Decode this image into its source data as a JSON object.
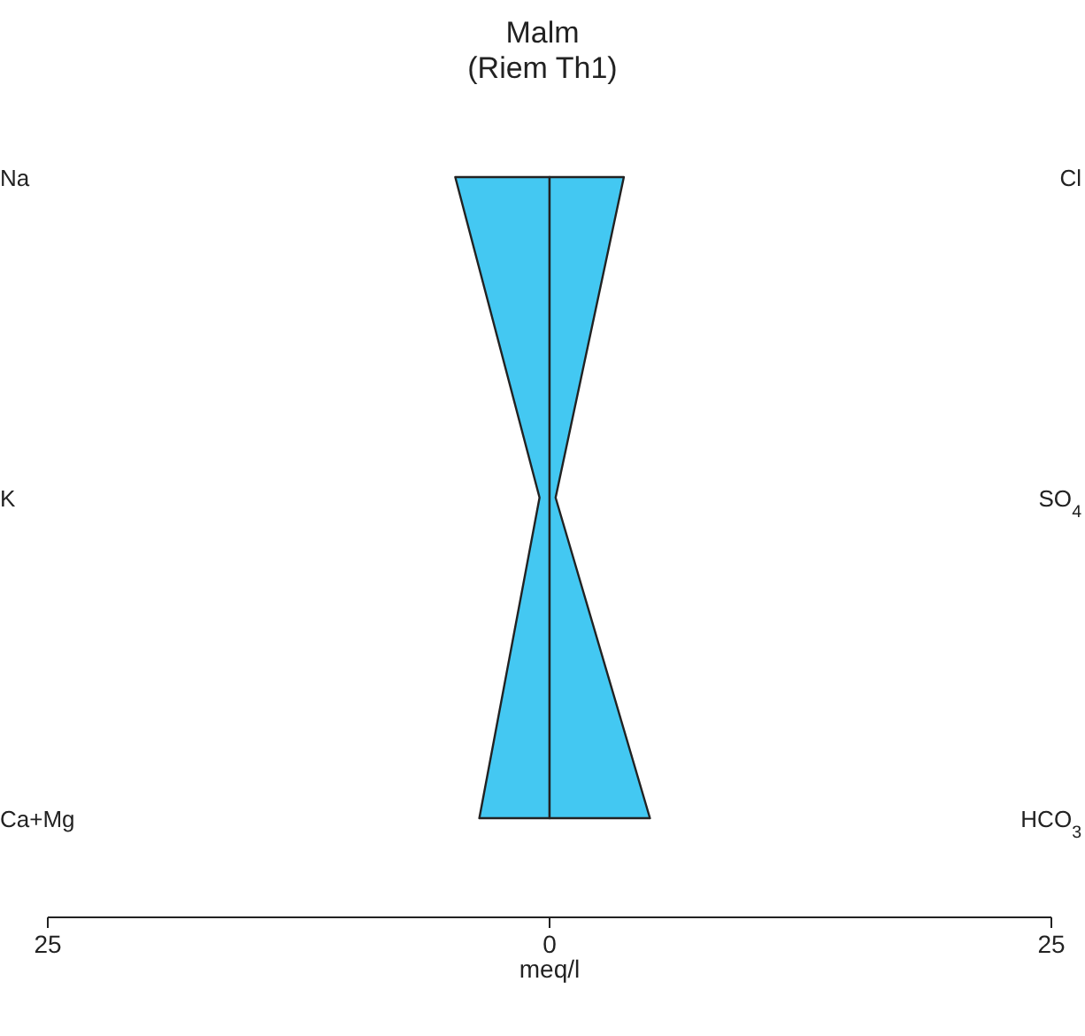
{
  "chart_data": {
    "type": "area",
    "orientation": "horizontal",
    "title": "Malm\n(Riem Th1)",
    "xlabel": "meq/l",
    "categories": [
      "Na",
      "K",
      "Ca+Mg"
    ],
    "y2_categories": [
      "Cl",
      "SO$_{4}$",
      "HCO$_{3}$"
    ],
    "series": [
      {
        "color": "#44c8f2",
        "values": [
          -4.7,
          -0.5,
          -3.5
        ]
      },
      {
        "color": "#43c8f2",
        "values": [
          3.7,
          0.3,
          5.0
        ]
      }
    ],
    "xlim": [
      -25,
      25
    ],
    "xticks": [
      {
        "value": -25,
        "label": "25"
      },
      0,
      25
    ],
    "grid": false
  }
}
